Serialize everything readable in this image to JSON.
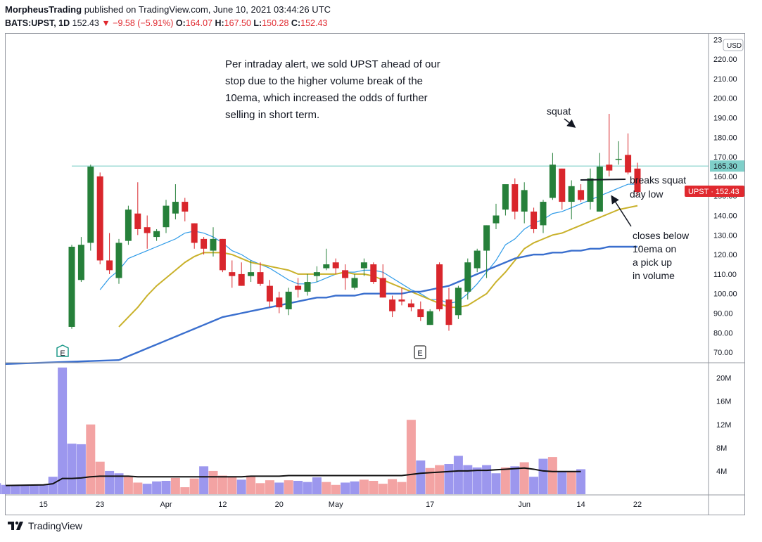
{
  "header": {
    "publisher": "MorpheusTrading",
    "published_text": "published on TradingView.com, June 10, 2021 03:44:26 UTC",
    "symbol": "BATS:UPST, 1D",
    "last": "152.43",
    "change": "−9.58 (−5.91%)",
    "ohlc": [
      {
        "label": "O:",
        "value": "164.07"
      },
      {
        "label": "H:",
        "value": "167.50"
      },
      {
        "label": "L:",
        "value": "150.28"
      },
      {
        "label": "C:",
        "value": "152.43"
      }
    ]
  },
  "footer": {
    "brand": "TradingView"
  },
  "colors": {
    "up": "#26803a",
    "down": "#d9262c",
    "ema10": "#2f9be8",
    "ema20": "#c9b12a",
    "ema50": "#3a6fce",
    "vol_up": "#9c97ee",
    "vol_down": "#f3a3a3",
    "vol_avg": "#111111",
    "level": "#7fcfc9",
    "price_badge": "#e0292f",
    "level_badge": "#7fcfc9"
  },
  "chart_data": [
    {
      "type": "candlestick",
      "title": "",
      "currency": "USD",
      "y_ticks": [
        "70.00",
        "80.00",
        "90.00",
        "100.00",
        "110.00",
        "120.00",
        "130.00",
        "140.00",
        "150.00",
        "160.00",
        "170.00",
        "180.00",
        "190.00",
        "200.00",
        "210.00",
        "220.00",
        "23"
      ],
      "ylim": [
        65,
        233
      ],
      "x_tick_labels": [
        {
          "label": "15",
          "bar": -3
        },
        {
          "label": "23",
          "bar": 3
        },
        {
          "label": "Apr",
          "bar": 10
        },
        {
          "label": "12",
          "bar": 16
        },
        {
          "label": "20",
          "bar": 22
        },
        {
          "label": "May",
          "bar": 28
        },
        {
          "label": "17",
          "bar": 38
        },
        {
          "label": "Jun",
          "bar": 48
        },
        {
          "label": "14",
          "bar": 54
        },
        {
          "label": "22",
          "bar": 60
        }
      ],
      "candles": [
        {
          "o": 83,
          "h": 125,
          "l": 82,
          "c": 124
        },
        {
          "o": 107,
          "h": 129,
          "l": 106,
          "c": 125
        },
        {
          "o": 126,
          "h": 166,
          "l": 122,
          "c": 165
        },
        {
          "o": 160,
          "h": 162,
          "l": 115,
          "c": 117
        },
        {
          "o": 117,
          "h": 131,
          "l": 110,
          "c": 112
        },
        {
          "o": 108,
          "h": 128,
          "l": 105,
          "c": 126
        },
        {
          "o": 127,
          "h": 145,
          "l": 125,
          "c": 143
        },
        {
          "o": 141,
          "h": 157,
          "l": 130,
          "c": 133
        },
        {
          "o": 134,
          "h": 140,
          "l": 123,
          "c": 131
        },
        {
          "o": 129,
          "h": 133,
          "l": 127,
          "c": 132
        },
        {
          "o": 134,
          "h": 148,
          "l": 131,
          "c": 145
        },
        {
          "o": 141,
          "h": 156,
          "l": 138,
          "c": 147
        },
        {
          "o": 147,
          "h": 149,
          "l": 137,
          "c": 142
        },
        {
          "o": 136,
          "h": 136,
          "l": 123,
          "c": 126
        },
        {
          "o": 128,
          "h": 129,
          "l": 120,
          "c": 123
        },
        {
          "o": 122,
          "h": 134,
          "l": 119,
          "c": 128
        },
        {
          "o": 128,
          "h": 128,
          "l": 111,
          "c": 112
        },
        {
          "o": 111,
          "h": 117,
          "l": 103,
          "c": 109
        },
        {
          "o": 110,
          "h": 116,
          "l": 104,
          "c": 104
        },
        {
          "o": 109,
          "h": 117,
          "l": 106,
          "c": 111
        },
        {
          "o": 111,
          "h": 116,
          "l": 104,
          "c": 105
        },
        {
          "o": 104,
          "h": 107,
          "l": 93,
          "c": 96
        },
        {
          "o": 98,
          "h": 101,
          "l": 90,
          "c": 93
        },
        {
          "o": 92,
          "h": 103,
          "l": 89,
          "c": 101
        },
        {
          "o": 104,
          "h": 108,
          "l": 98,
          "c": 102
        },
        {
          "o": 101,
          "h": 110,
          "l": 99,
          "c": 106
        },
        {
          "o": 109,
          "h": 114,
          "l": 106,
          "c": 111
        },
        {
          "o": 113,
          "h": 123,
          "l": 112,
          "c": 115
        },
        {
          "o": 116,
          "h": 118,
          "l": 110,
          "c": 113
        },
        {
          "o": 112,
          "h": 115,
          "l": 102,
          "c": 108
        },
        {
          "o": 103,
          "h": 110,
          "l": 102,
          "c": 108
        },
        {
          "o": 113,
          "h": 118,
          "l": 109,
          "c": 116
        },
        {
          "o": 115,
          "h": 116,
          "l": 105,
          "c": 106
        },
        {
          "o": 108,
          "h": 115,
          "l": 98,
          "c": 98
        },
        {
          "o": 97,
          "h": 99,
          "l": 88,
          "c": 91
        },
        {
          "o": 97,
          "h": 103,
          "l": 94,
          "c": 96
        },
        {
          "o": 95,
          "h": 97,
          "l": 91,
          "c": 93
        },
        {
          "o": 92,
          "h": 96,
          "l": 86,
          "c": 88
        },
        {
          "o": 84,
          "h": 92,
          "l": 84,
          "c": 91
        },
        {
          "o": 115,
          "h": 116,
          "l": 91,
          "c": 92
        },
        {
          "o": 97,
          "h": 103,
          "l": 81,
          "c": 84
        },
        {
          "o": 89,
          "h": 104,
          "l": 87,
          "c": 103
        },
        {
          "o": 101,
          "h": 118,
          "l": 97,
          "c": 116
        },
        {
          "o": 113,
          "h": 123,
          "l": 111,
          "c": 122
        },
        {
          "o": 122,
          "h": 135,
          "l": 108,
          "c": 135
        },
        {
          "o": 136,
          "h": 146,
          "l": 133,
          "c": 140
        },
        {
          "o": 143,
          "h": 155,
          "l": 140,
          "c": 156
        },
        {
          "o": 156,
          "h": 159,
          "l": 138,
          "c": 142
        },
        {
          "o": 142,
          "h": 157,
          "l": 136,
          "c": 153
        },
        {
          "o": 142,
          "h": 144,
          "l": 131,
          "c": 133
        },
        {
          "o": 135,
          "h": 148,
          "l": 131,
          "c": 147
        },
        {
          "o": 149,
          "h": 172,
          "l": 148,
          "c": 166
        },
        {
          "o": 164,
          "h": 164,
          "l": 143,
          "c": 147
        },
        {
          "o": 147,
          "h": 158,
          "l": 138,
          "c": 155
        },
        {
          "o": 153,
          "h": 156,
          "l": 147,
          "c": 148
        },
        {
          "o": 147,
          "h": 164,
          "l": 143,
          "c": 159
        },
        {
          "o": 142,
          "h": 172,
          "l": 142,
          "c": 165
        },
        {
          "o": 166,
          "h": 192,
          "l": 160,
          "c": 163
        },
        {
          "o": 169,
          "h": 178,
          "l": 166,
          "c": 169
        },
        {
          "o": 171,
          "h": 182,
          "l": 161,
          "c": 162
        },
        {
          "o": 164,
          "h": 167,
          "l": 150,
          "c": 152
        }
      ],
      "series": [
        {
          "name": "",
          "values": [
            null,
            null,
            null,
            102,
            108,
            112,
            118,
            120,
            122,
            124,
            126,
            128,
            131,
            132,
            131,
            129,
            126,
            122,
            120,
            117,
            115,
            113,
            110,
            107,
            105,
            105,
            106,
            108,
            110,
            111,
            111,
            112,
            112,
            111,
            108,
            105,
            102,
            100,
            97,
            97,
            95,
            96,
            100,
            105,
            111,
            117,
            125,
            128,
            133,
            136,
            138,
            141,
            142,
            144,
            146,
            148,
            150,
            152,
            154,
            156,
            156
          ]
        },
        {
          "name": "",
          "values": [
            null,
            null,
            null,
            null,
            null,
            83,
            88,
            93,
            99,
            104,
            108,
            112,
            116,
            119,
            121,
            121,
            121,
            120,
            118,
            116,
            115,
            114,
            113,
            112,
            110,
            110,
            110,
            110,
            110,
            111,
            110,
            110,
            109,
            107,
            105,
            103,
            101,
            99,
            97,
            95,
            93,
            93,
            94,
            97,
            100,
            106,
            111,
            117,
            123,
            126,
            128,
            130,
            131,
            133,
            135,
            137,
            139,
            141,
            143,
            144,
            145
          ]
        },
        {
          "name": "",
          "values": [
            null,
            null,
            null,
            null,
            null,
            66,
            68,
            70,
            72,
            74,
            76,
            78,
            80,
            82,
            84,
            86,
            88,
            89,
            90,
            91,
            92,
            93,
            94,
            95,
            96,
            97,
            98,
            98,
            99,
            99,
            99,
            100,
            100,
            100,
            100,
            100,
            101,
            101,
            102,
            103,
            104,
            106,
            108,
            110,
            112,
            114,
            116,
            118,
            119,
            120,
            120,
            121,
            121,
            122,
            122,
            123,
            123,
            124,
            124,
            124,
            124
          ]
        }
      ],
      "level_line": {
        "value": 165.3,
        "label": "165.30"
      },
      "price_tag": {
        "label": "UPST · 152.43",
        "value": 152.43
      },
      "earnings_markers": [
        {
          "bar": 1,
          "label": "E"
        },
        {
          "bar": 37,
          "label": "E"
        }
      ],
      "annotations": [
        {
          "id": "main",
          "text": [
            "Per intraday alert, we sold UPST ahead of our",
            "stop due to the higher volume break of the",
            "10ema, which increased the odds of further",
            "selling in short term."
          ]
        },
        {
          "id": "squat",
          "text": [
            "squat"
          ]
        },
        {
          "id": "breaks",
          "text": [
            "breaks squat",
            "day low"
          ]
        },
        {
          "id": "closes",
          "text": [
            "closes below",
            "10ema on",
            "a pick up",
            "in volume"
          ]
        }
      ]
    },
    {
      "type": "bar",
      "title": "",
      "y_ticks": [
        "4M",
        "8M",
        "12M",
        "16M",
        "20M"
      ],
      "ylim": [
        0,
        22.5
      ],
      "unit": "M",
      "leading_bars": [
        {
          "value": 1.9,
          "dir": "up"
        },
        {
          "value": 1.6,
          "dir": "up"
        },
        {
          "value": 1.6,
          "dir": "up"
        },
        {
          "value": 1.6,
          "dir": "up"
        },
        {
          "value": 1.6,
          "dir": "up"
        },
        {
          "value": 1.6,
          "dir": "up"
        },
        {
          "value": 3.0,
          "dir": "up"
        }
      ],
      "values": [
        21.8,
        8.7,
        8.6,
        12.0,
        5.6,
        4.0,
        3.6,
        3.1,
        2.0,
        1.8,
        2.2,
        2.3,
        2.8,
        1.2,
        2.7,
        4.8,
        4.0,
        3.2,
        2.9,
        2.5,
        3.2,
        1.9,
        2.4,
        2.0,
        2.4,
        2.3,
        2.1,
        2.9,
        2.1,
        1.6,
        2.0,
        2.2,
        2.5,
        2.3,
        1.8,
        2.6,
        2.1,
        12.8,
        5.8,
        4.5,
        5.0,
        5.2,
        6.6,
        5.0,
        4.6,
        5.0,
        3.6,
        4.6,
        4.8,
        5.5,
        3.0,
        6.1,
        6.4,
        3.8,
        3.8,
        4.3
      ],
      "avg": [
        2.7,
        2.7,
        2.8,
        3.0,
        3.1,
        3.1,
        3.1,
        3.1,
        3.0,
        3.0,
        3.0,
        3.0,
        3.0,
        3.0,
        3.0,
        3.0,
        3.0,
        3.0,
        3.0,
        3.0,
        3.1,
        3.1,
        3.1,
        3.1,
        3.2,
        3.2,
        3.2,
        3.2,
        3.2,
        3.2,
        3.2,
        3.2,
        3.2,
        3.2,
        3.2,
        3.2,
        3.2,
        3.4,
        3.6,
        3.7,
        3.8,
        3.9,
        4.0,
        4.0,
        4.1,
        4.1,
        4.2,
        4.3,
        4.4,
        4.5,
        4.3,
        4.0,
        3.9,
        3.9,
        3.9,
        3.9
      ]
    }
  ]
}
